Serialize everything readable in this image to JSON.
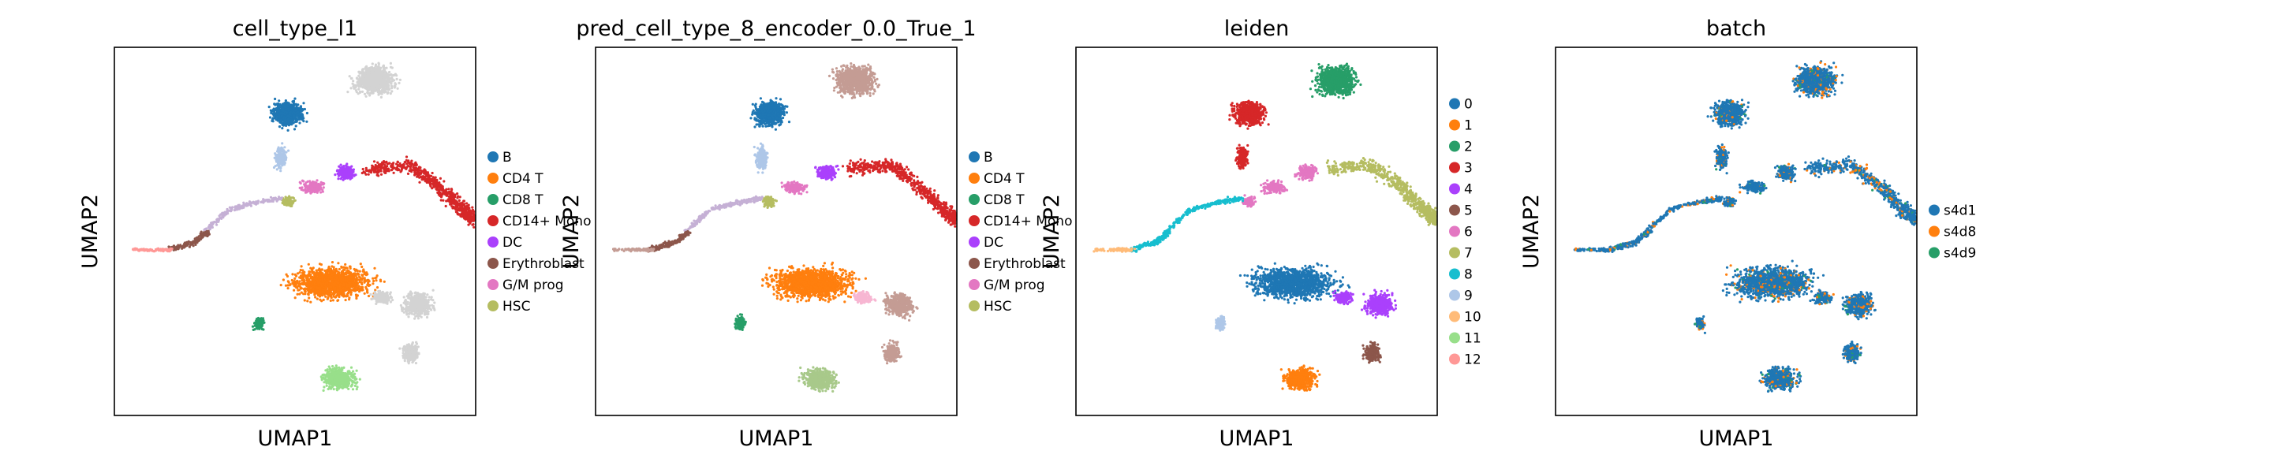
{
  "chart_data": [
    {
      "type": "scatter",
      "title": "cell_type_l1",
      "xlabel": "UMAP1",
      "ylabel": "UMAP2",
      "show_ticks": false,
      "grid": false,
      "legend_position": "right",
      "legend": [
        {
          "label": "B",
          "color": "#1f77b4"
        },
        {
          "label": "CD4 T",
          "color": "#ff7f0e"
        },
        {
          "label": "CD8 T",
          "color": "#279e68"
        },
        {
          "label": "CD14+ Mono",
          "color": "#d62728"
        },
        {
          "label": "DC",
          "color": "#aa40fc"
        },
        {
          "label": "Erythroblast",
          "color": "#8c564b"
        },
        {
          "label": "G/M prog",
          "color": "#e377c2"
        },
        {
          "label": "HSC",
          "color": "#b5bd61"
        }
      ],
      "clusters": [
        {
          "key": "a",
          "color": "#d3d3d3"
        },
        {
          "key": "b",
          "color": "#1f77b4"
        },
        {
          "key": "c",
          "color": "#aec7e8"
        },
        {
          "key": "d",
          "color": "#aa40fc"
        },
        {
          "key": "e",
          "color": "#d62728"
        },
        {
          "key": "f",
          "color": "#e377c2"
        },
        {
          "key": "g",
          "color": "#b5bd61"
        },
        {
          "key": "h",
          "color": "#c5b0d5"
        },
        {
          "key": "i",
          "color": "#8c564b"
        },
        {
          "key": "j",
          "color": "#ff9896"
        },
        {
          "key": "k",
          "color": "#ff7f0e"
        },
        {
          "key": "l",
          "color": "#d3d3d3"
        },
        {
          "key": "m",
          "color": "#279e68"
        },
        {
          "key": "n",
          "color": "#98df8a"
        },
        {
          "key": "o",
          "color": "#d3d3d3"
        },
        {
          "key": "p",
          "color": "#d3d3d3"
        }
      ]
    },
    {
      "type": "scatter",
      "title": "pred_cell_type_8_encoder_0.0_True_1",
      "xlabel": "UMAP1",
      "ylabel": "UMAP2",
      "show_ticks": false,
      "grid": false,
      "legend_position": "right",
      "legend": [
        {
          "label": "B",
          "color": "#1f77b4"
        },
        {
          "label": "CD4 T",
          "color": "#ff7f0e"
        },
        {
          "label": "CD8 T",
          "color": "#279e68"
        },
        {
          "label": "CD14+ Mono",
          "color": "#d62728"
        },
        {
          "label": "DC",
          "color": "#aa40fc"
        },
        {
          "label": "Erythroblast",
          "color": "#8c564b"
        },
        {
          "label": "G/M prog",
          "color": "#e377c2"
        },
        {
          "label": "HSC",
          "color": "#b5bd61"
        }
      ],
      "clusters": [
        {
          "key": "a",
          "color": "#c49c94"
        },
        {
          "key": "b",
          "color": "#1f77b4"
        },
        {
          "key": "c",
          "color": "#aec7e8"
        },
        {
          "key": "d",
          "color": "#aa40fc"
        },
        {
          "key": "e",
          "color": "#d62728"
        },
        {
          "key": "f",
          "color": "#e377c2"
        },
        {
          "key": "g",
          "color": "#b5bd61"
        },
        {
          "key": "h",
          "color": "#c5b0d5"
        },
        {
          "key": "i",
          "color": "#8c564b"
        },
        {
          "key": "j",
          "color": "#c49c94"
        },
        {
          "key": "k",
          "color": "#ff7f0e"
        },
        {
          "key": "l",
          "color": "#c49c94"
        },
        {
          "key": "m",
          "color": "#279e68"
        },
        {
          "key": "n",
          "color": "#a8c98a"
        },
        {
          "key": "o",
          "color": "#c49c94"
        },
        {
          "key": "p",
          "color": "#f7b6d2"
        }
      ]
    },
    {
      "type": "scatter",
      "title": "leiden",
      "xlabel": "UMAP1",
      "ylabel": "UMAP2",
      "show_ticks": false,
      "grid": false,
      "legend_position": "right",
      "legend": [
        {
          "label": "0",
          "color": "#1f77b4"
        },
        {
          "label": "1",
          "color": "#ff7f0e"
        },
        {
          "label": "2",
          "color": "#279e68"
        },
        {
          "label": "3",
          "color": "#d62728"
        },
        {
          "label": "4",
          "color": "#aa40fc"
        },
        {
          "label": "5",
          "color": "#8c564b"
        },
        {
          "label": "6",
          "color": "#e377c2"
        },
        {
          "label": "7",
          "color": "#b5bd61"
        },
        {
          "label": "8",
          "color": "#17becf"
        },
        {
          "label": "9",
          "color": "#aec7e8"
        },
        {
          "label": "10",
          "color": "#ffbb78"
        },
        {
          "label": "11",
          "color": "#98df8a"
        },
        {
          "label": "12",
          "color": "#ff9896"
        }
      ],
      "clusters": [
        {
          "key": "a",
          "color": "#279e68"
        },
        {
          "key": "b",
          "color": "#d62728"
        },
        {
          "key": "c",
          "color": "#d62728"
        },
        {
          "key": "d",
          "color": "#e377c2"
        },
        {
          "key": "e",
          "color": "#b5bd61"
        },
        {
          "key": "f",
          "color": "#e377c2"
        },
        {
          "key": "g",
          "color": "#e377c2"
        },
        {
          "key": "h",
          "color": "#17becf"
        },
        {
          "key": "i",
          "color": "#17becf"
        },
        {
          "key": "j",
          "color": "#ffbb78"
        },
        {
          "key": "k",
          "color": "#1f77b4"
        },
        {
          "key": "l",
          "color": "#aa40fc"
        },
        {
          "key": "m",
          "color": "#aec7e8"
        },
        {
          "key": "n",
          "color": "#ff7f0e"
        },
        {
          "key": "o",
          "color": "#8c564b"
        },
        {
          "key": "p",
          "color": "#aa40fc"
        }
      ]
    },
    {
      "type": "scatter",
      "title": "batch",
      "xlabel": "UMAP1",
      "ylabel": "UMAP2",
      "show_ticks": false,
      "grid": false,
      "legend_position": "right",
      "legend": [
        {
          "label": "s4d1",
          "color": "#1f77b4"
        },
        {
          "label": "s4d8",
          "color": "#ff7f0e"
        },
        {
          "label": "s4d9",
          "color": "#279e68"
        }
      ],
      "clusters": [
        {
          "key": "a",
          "color": "#1f77b4"
        },
        {
          "key": "b",
          "color": "#1f77b4"
        },
        {
          "key": "c",
          "color": "#1f77b4"
        },
        {
          "key": "d",
          "color": "#1f77b4"
        },
        {
          "key": "e",
          "color": "#1f77b4"
        },
        {
          "key": "f",
          "color": "#1f77b4"
        },
        {
          "key": "g",
          "color": "#1f77b4"
        },
        {
          "key": "h",
          "color": "#1f77b4"
        },
        {
          "key": "i",
          "color": "#1f77b4"
        },
        {
          "key": "j",
          "color": "#1f77b4"
        },
        {
          "key": "k",
          "color": "#1f77b4"
        },
        {
          "key": "l",
          "color": "#1f77b4"
        },
        {
          "key": "m",
          "color": "#1f77b4"
        },
        {
          "key": "n",
          "color": "#1f77b4"
        },
        {
          "key": "o",
          "color": "#1f77b4"
        },
        {
          "key": "p",
          "color": "#1f77b4"
        }
      ],
      "mix_colors": [
        "#ff7f0e",
        "#279e68"
      ]
    }
  ]
}
